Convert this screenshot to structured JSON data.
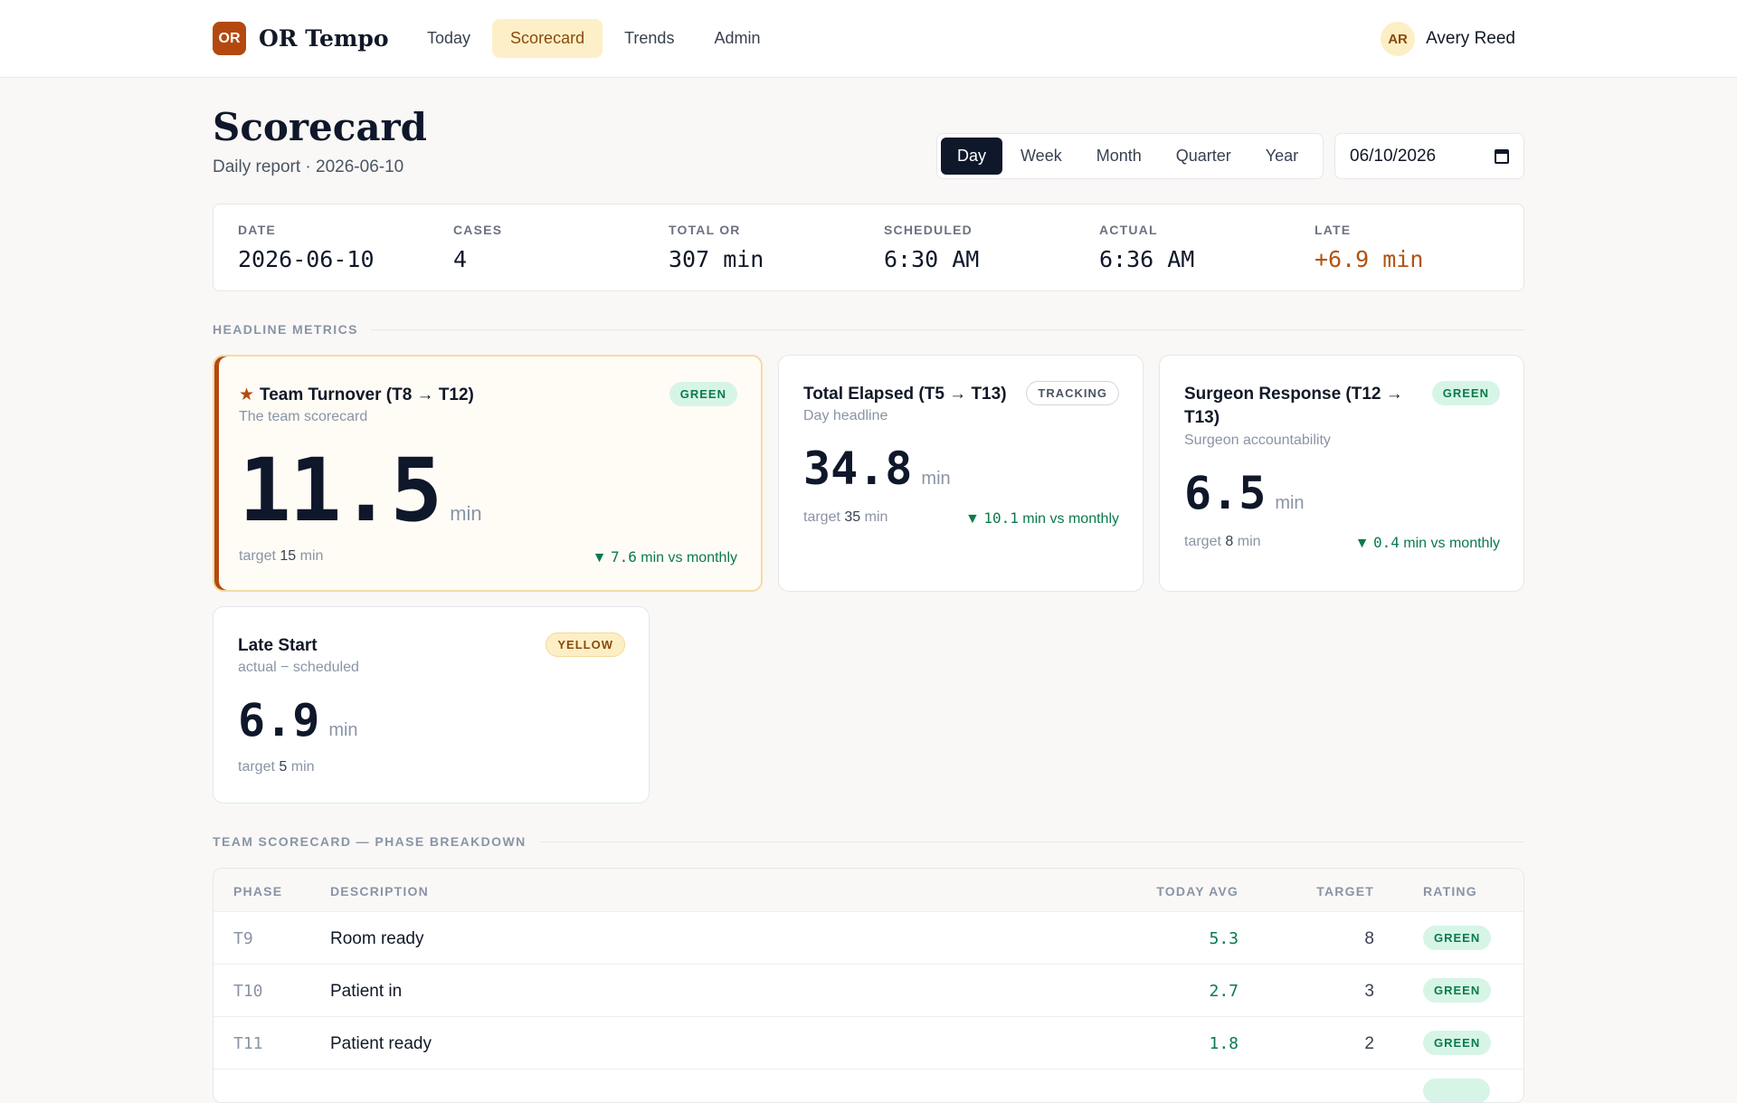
{
  "app": {
    "logo_text": "OR",
    "name": "OR Tempo"
  },
  "nav": {
    "items": [
      {
        "label": "Today",
        "active": false
      },
      {
        "label": "Scorecard",
        "active": true
      },
      {
        "label": "Trends",
        "active": false
      },
      {
        "label": "Admin",
        "active": false
      }
    ]
  },
  "user": {
    "initials": "AR",
    "name": "Avery Reed"
  },
  "header": {
    "title": "Scorecard",
    "subtitle": "Daily report · 2026-06-10"
  },
  "period": {
    "options": [
      "Day",
      "Week",
      "Month",
      "Quarter",
      "Year"
    ],
    "selected": "Day",
    "date_value": "06/10/2026"
  },
  "summary": [
    {
      "label": "DATE",
      "value": "2026-06-10"
    },
    {
      "label": "CASES",
      "value": "4"
    },
    {
      "label": "TOTAL OR",
      "value": "307 min"
    },
    {
      "label": "SCHEDULED",
      "value": "6:30 AM"
    },
    {
      "label": "ACTUAL",
      "value": "6:36 AM"
    },
    {
      "label": "LATE",
      "value": "+6.9 min"
    }
  ],
  "sections": {
    "headline": "HEADLINE METRICS",
    "breakdown": "TEAM SCORECARD — PHASE BREAKDOWN"
  },
  "metrics": {
    "turnover": {
      "star": "★",
      "title": "Team Turnover (T8 → T12)",
      "subtitle": "The team scorecard",
      "badge": "GREEN",
      "value": "11.5",
      "unit": "min",
      "target_prefix": "target",
      "target_value": "15",
      "target_unit": "min",
      "delta_arrow": "▼",
      "delta_value": "7.6",
      "delta_text": "min vs monthly"
    },
    "elapsed": {
      "title": "Total Elapsed (T5 → T13)",
      "subtitle": "Day headline",
      "badge": "TRACKING",
      "value": "34.8",
      "unit": "min",
      "target_prefix": "target",
      "target_value": "35",
      "target_unit": "min",
      "delta_arrow": "▼",
      "delta_value": "10.1",
      "delta_text": "min vs monthly"
    },
    "surgeon": {
      "title_line1": "Surgeon Response (T12 →",
      "title_line2": "T13)",
      "subtitle": "Surgeon accountability",
      "badge": "GREEN",
      "value": "6.5",
      "unit": "min",
      "target_prefix": "target",
      "target_value": "8",
      "target_unit": "min",
      "delta_arrow": "▼",
      "delta_value": "0.4",
      "delta_text": "min vs monthly"
    },
    "late": {
      "title": "Late Start",
      "subtitle": "actual − scheduled",
      "badge": "YELLOW",
      "value": "6.9",
      "unit": "min",
      "target_prefix": "target",
      "target_value": "5",
      "target_unit": "min"
    }
  },
  "table": {
    "columns": [
      "PHASE",
      "DESCRIPTION",
      "TODAY AVG",
      "TARGET",
      "RATING"
    ],
    "rows": [
      {
        "phase": "T9",
        "description": "Room ready",
        "avg": "5.3",
        "target": "8",
        "rating": "GREEN"
      },
      {
        "phase": "T10",
        "description": "Patient in",
        "avg": "2.7",
        "target": "3",
        "rating": "GREEN"
      },
      {
        "phase": "T11",
        "description": "Patient ready",
        "avg": "1.8",
        "target": "2",
        "rating": "GREEN"
      }
    ]
  }
}
